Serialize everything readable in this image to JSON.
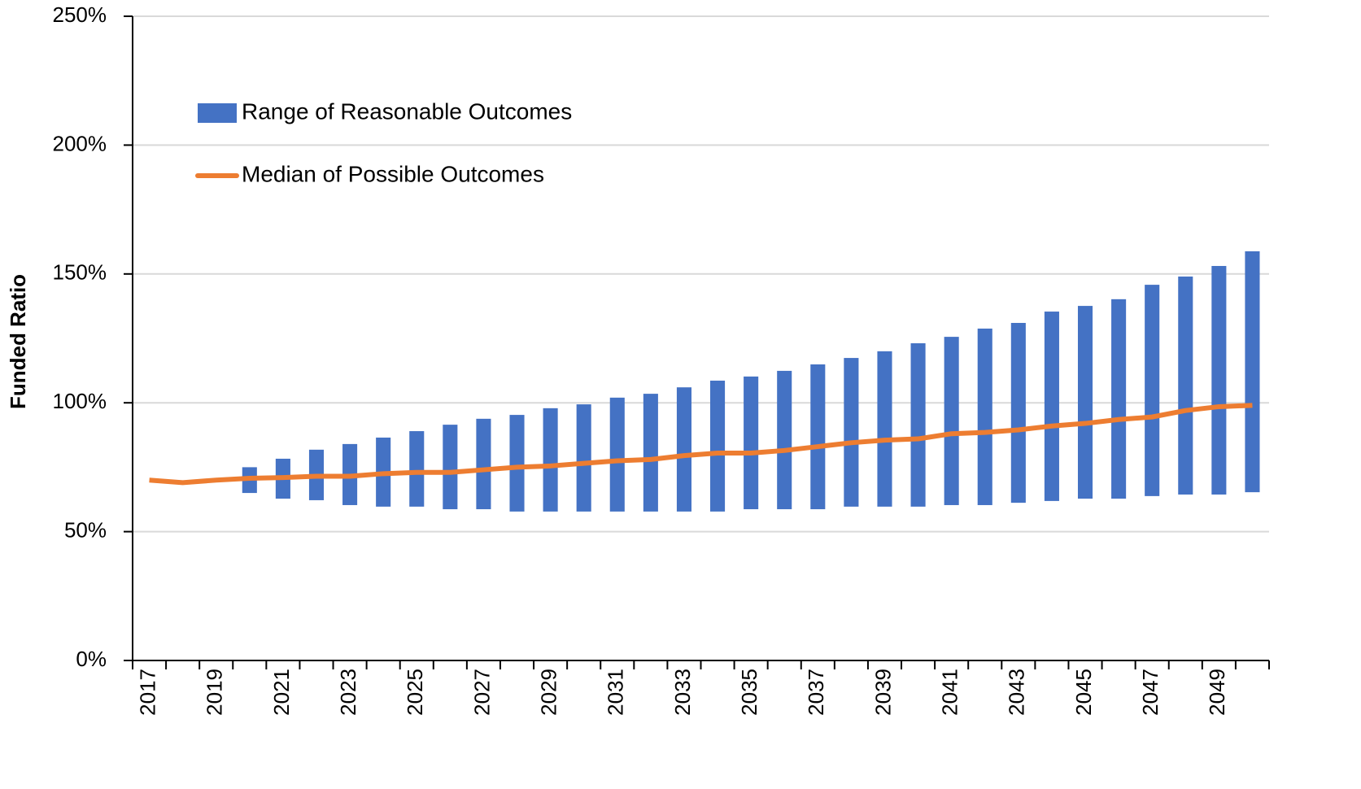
{
  "chart_data": {
    "type": "combo",
    "y_label": "Funded Ratio",
    "categories": [
      "2017",
      null,
      "2019",
      null,
      "2021",
      null,
      "2023",
      null,
      "2025",
      null,
      "2027",
      null,
      "2029",
      null,
      "2031",
      null,
      "2033",
      null,
      "2035",
      null,
      "2037",
      null,
      "2039",
      null,
      "2041",
      null,
      "2043",
      null,
      "2045",
      null,
      "2047",
      null,
      "2049",
      null
    ],
    "ylim": [
      0,
      250
    ],
    "yticks": [
      {
        "value": 0,
        "label": "0%"
      },
      {
        "value": 50,
        "label": "50%"
      },
      {
        "value": 100,
        "label": "100%"
      },
      {
        "value": 150,
        "label": "150%"
      },
      {
        "value": 200,
        "label": "200%"
      },
      {
        "value": 250,
        "label": "250%"
      }
    ],
    "grid": true,
    "legend": "upper left",
    "series": [
      {
        "name": "Range of Reasonable Outcomes",
        "type": "range-bar",
        "color": "#4472c4",
        "low": [
          null,
          null,
          null,
          65,
          62.8,
          62.2,
          60.3,
          59.7,
          59.7,
          58.7,
          58.7,
          57.8,
          57.8,
          57.8,
          57.8,
          57.8,
          57.8,
          57.8,
          58.7,
          58.7,
          58.7,
          59.7,
          59.7,
          59.7,
          60.3,
          60.3,
          61.2,
          61.9,
          62.8,
          62.8,
          63.8,
          64.4,
          64.4,
          65.3
        ],
        "high": [
          null,
          null,
          null,
          75,
          78.3,
          81.8,
          84,
          86.5,
          89,
          91.5,
          93.8,
          95.3,
          97.9,
          99.4,
          102,
          103.5,
          106,
          108.6,
          110.2,
          112.4,
          114.9,
          117.4,
          120,
          123.1,
          125.6,
          128.8,
          131,
          135.4,
          137.6,
          140.2,
          145.8,
          149,
          153.1,
          158.8
        ]
      },
      {
        "name": "Median of Possible Outcomes",
        "type": "line",
        "color": "#ed7d31",
        "values": [
          70,
          69,
          70,
          70.7,
          71,
          71.5,
          71.5,
          72.5,
          73,
          73,
          74,
          75,
          75.5,
          76.5,
          77.5,
          78,
          79.5,
          80.5,
          80.5,
          81.5,
          83,
          84.5,
          85.5,
          86,
          88,
          88.5,
          89.5,
          91,
          92,
          93.5,
          94.5,
          97,
          98.5,
          99
        ]
      }
    ]
  }
}
